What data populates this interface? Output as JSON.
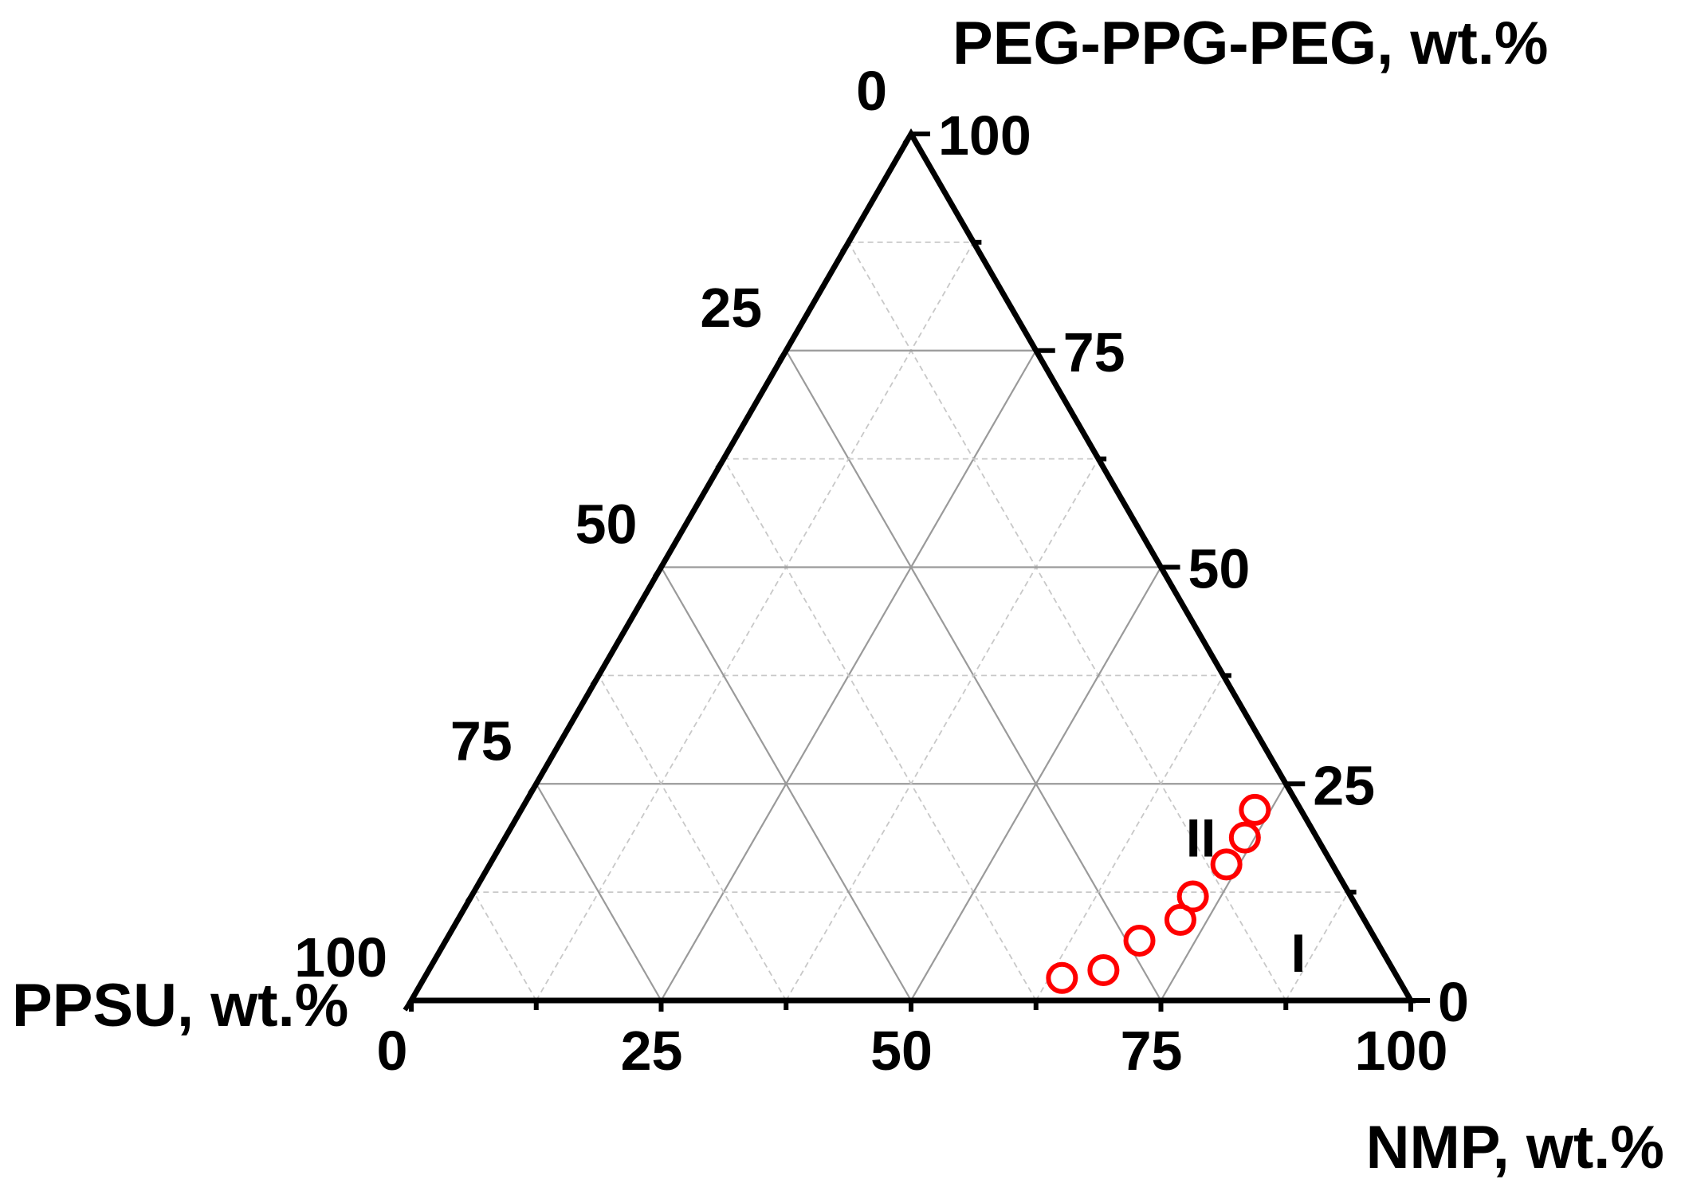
{
  "chart_data": {
    "type": "scatter",
    "subtype": "ternary",
    "axes": {
      "top": {
        "label": "PEG-PPG-PEG, wt.%"
      },
      "left": {
        "label": "PPSU, wt.%"
      },
      "right": {
        "label": "NMP, wt.%"
      }
    },
    "range": [
      0,
      100
    ],
    "major_ticks": [
      0,
      25,
      50,
      75,
      100
    ],
    "minor_tick_step": 12.5,
    "grid": true,
    "colors": {
      "frame": "#000000",
      "points": "#ff0000"
    },
    "regions": [
      {
        "label": "II",
        "peg": 18.8,
        "nmp": 69.6
      },
      {
        "label": "I",
        "peg": 5.5,
        "nmp": 86
      }
    ],
    "series": [
      {
        "marker": "open-circle",
        "points": [
          {
            "ppsu": 33.6,
            "nmp": 63.8,
            "peg": 2.6
          },
          {
            "ppsu": 29.0,
            "nmp": 67.5,
            "peg": 3.5
          },
          {
            "ppsu": 23.7,
            "nmp": 69.4,
            "peg": 6.9
          },
          {
            "ppsu": 18.4,
            "nmp": 72.3,
            "peg": 9.3
          },
          {
            "ppsu": 15.8,
            "nmp": 72.2,
            "peg": 12.0
          },
          {
            "ppsu": 10.6,
            "nmp": 73.7,
            "peg": 15.7
          },
          {
            "ppsu": 7.2,
            "nmp": 74.0,
            "peg": 18.8
          },
          {
            "ppsu": 4.6,
            "nmp": 73.4,
            "peg": 22.0
          }
        ]
      }
    ]
  }
}
